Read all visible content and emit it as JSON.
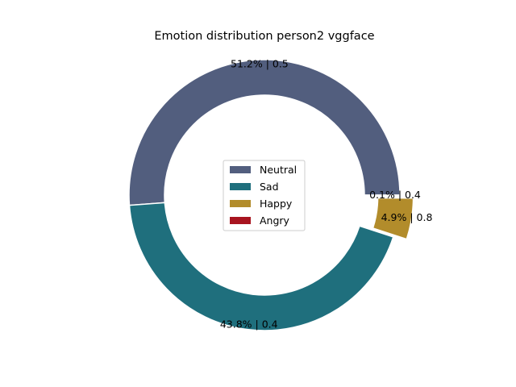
{
  "chart_data": {
    "type": "pie",
    "style": "donut",
    "title": "Emotion distribution person2 vggface",
    "slices": [
      {
        "name": "Neutral",
        "percent": 51.2,
        "score": "0.5",
        "label": "51.2% | 0.5",
        "color": "#525e7e",
        "exploded": false
      },
      {
        "name": "Sad",
        "percent": 43.8,
        "score": "0.4",
        "label": "43.8% | 0.4",
        "color": "#1f6f7d",
        "exploded": false
      },
      {
        "name": "Happy",
        "percent": 4.9,
        "score": "0.8",
        "label": "4.9% | 0.8",
        "color": "#b28c2b",
        "exploded": true
      },
      {
        "name": "Angry",
        "percent": 0.1,
        "score": "0.4",
        "label": "0.1% | 0.4",
        "color": "#a8141f",
        "exploded": false
      }
    ],
    "legend": {
      "placement": "center",
      "entries": [
        "Neutral",
        "Sad",
        "Happy",
        "Angry"
      ]
    }
  }
}
